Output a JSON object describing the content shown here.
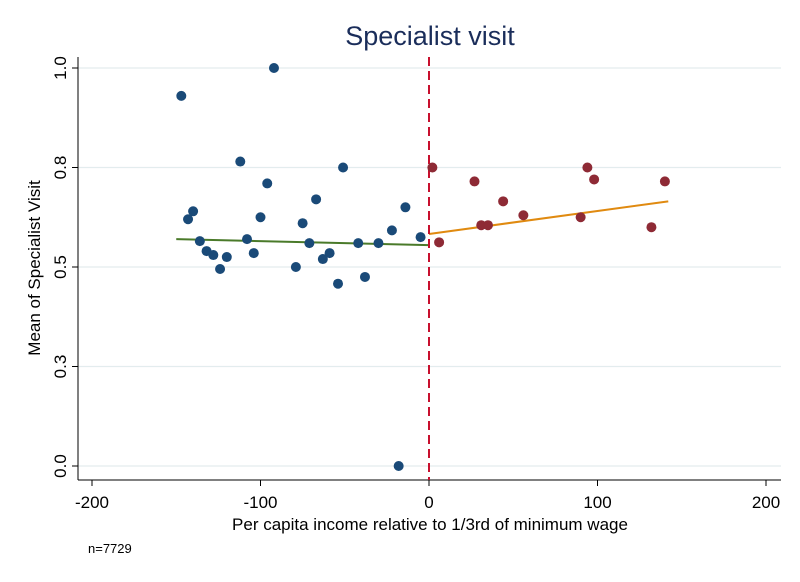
{
  "chart_data": {
    "type": "scatter",
    "title": "Specialist visit",
    "xlabel": "Per capita income relative to 1/3rd of minimum wage",
    "ylabel": "Mean of Specialist Visit",
    "note": "n=7729",
    "xlim": [
      -200,
      200
    ],
    "ylim": [
      0,
      1
    ],
    "xticks": [
      -200,
      -100,
      0,
      100,
      200
    ],
    "xtick_labels": [
      "-200",
      "-100",
      "0",
      "100",
      "200"
    ],
    "yticks": [
      0,
      0.25,
      0.5,
      0.75,
      1.0
    ],
    "ytick_labels": [
      "0.0",
      "0.3",
      "0.5",
      "0.8",
      "1.0"
    ],
    "grid": true,
    "cutoff": 0,
    "colors": {
      "left_points": "#1a4a78",
      "right_points": "#8e2a35",
      "left_fit": "#4a7a2a",
      "right_fit": "#e08a10",
      "cutoff_line": "#c8102e",
      "title": "#1a2d5a",
      "grid": "#e3ecee",
      "background": "#ffffff"
    },
    "series": [
      {
        "color": "#1a4a78",
        "points": [
          {
            "x": -147,
            "y": 0.93
          },
          {
            "x": -143,
            "y": 0.62
          },
          {
            "x": -140,
            "y": 0.64
          },
          {
            "x": -136,
            "y": 0.565
          },
          {
            "x": -132,
            "y": 0.54
          },
          {
            "x": -128,
            "y": 0.53
          },
          {
            "x": -124,
            "y": 0.495
          },
          {
            "x": -120,
            "y": 0.525
          },
          {
            "x": -112,
            "y": 0.765
          },
          {
            "x": -108,
            "y": 0.57
          },
          {
            "x": -104,
            "y": 0.535
          },
          {
            "x": -100,
            "y": 0.625
          },
          {
            "x": -96,
            "y": 0.71
          },
          {
            "x": -92,
            "y": 1.0
          },
          {
            "x": -79,
            "y": 0.5
          },
          {
            "x": -75,
            "y": 0.61
          },
          {
            "x": -71,
            "y": 0.56
          },
          {
            "x": -67,
            "y": 0.67
          },
          {
            "x": -63,
            "y": 0.52
          },
          {
            "x": -59,
            "y": 0.535
          },
          {
            "x": -54,
            "y": 0.458
          },
          {
            "x": -51,
            "y": 0.75
          },
          {
            "x": -42,
            "y": 0.56
          },
          {
            "x": -38,
            "y": 0.475
          },
          {
            "x": -30,
            "y": 0.56
          },
          {
            "x": -22,
            "y": 0.592
          },
          {
            "x": -18,
            "y": 0.0
          },
          {
            "x": -14,
            "y": 0.65
          },
          {
            "x": -5,
            "y": 0.575
          }
        ]
      },
      {
        "color": "#8e2a35",
        "points": [
          {
            "x": 2,
            "y": 0.75
          },
          {
            "x": 6,
            "y": 0.562
          },
          {
            "x": 27,
            "y": 0.715
          },
          {
            "x": 31,
            "y": 0.605
          },
          {
            "x": 35,
            "y": 0.605
          },
          {
            "x": 44,
            "y": 0.665
          },
          {
            "x": 56,
            "y": 0.63
          },
          {
            "x": 90,
            "y": 0.625
          },
          {
            "x": 94,
            "y": 0.75
          },
          {
            "x": 98,
            "y": 0.72
          },
          {
            "x": 132,
            "y": 0.6
          },
          {
            "x": 140,
            "y": 0.715
          }
        ]
      }
    ],
    "fit_lines": [
      {
        "color": "#4a7a2a",
        "x": [
          -150,
          0
        ],
        "y": [
          0.57,
          0.555
        ]
      },
      {
        "color": "#e08a10",
        "x": [
          0,
          142
        ],
        "y": [
          0.583,
          0.665
        ]
      }
    ]
  }
}
